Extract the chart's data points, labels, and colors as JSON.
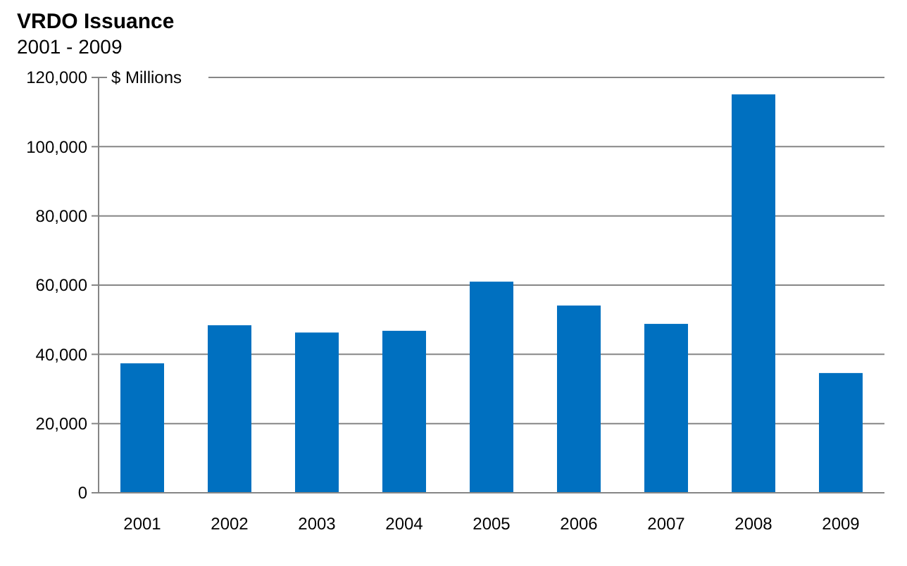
{
  "chart_data": {
    "type": "bar",
    "title": "VRDO Issuance",
    "subtitle": "2001 - 2009",
    "ylabel": "$ Millions",
    "categories": [
      "2001",
      "2002",
      "2003",
      "2004",
      "2005",
      "2006",
      "2007",
      "2008",
      "2009"
    ],
    "values": [
      37400,
      48400,
      46300,
      46800,
      61000,
      54100,
      48800,
      115100,
      34600
    ],
    "color": "#0070c0",
    "ylim": [
      0,
      120000
    ],
    "yticks": [
      {
        "value": 0,
        "label": "0"
      },
      {
        "value": 20000,
        "label": "20,000"
      },
      {
        "value": 40000,
        "label": "40,000"
      },
      {
        "value": 60000,
        "label": "60,000"
      },
      {
        "value": 80000,
        "label": "80,000"
      },
      {
        "value": 100000,
        "label": "100,000"
      },
      {
        "value": 120000,
        "label": "120,000"
      }
    ],
    "grid": "y"
  }
}
